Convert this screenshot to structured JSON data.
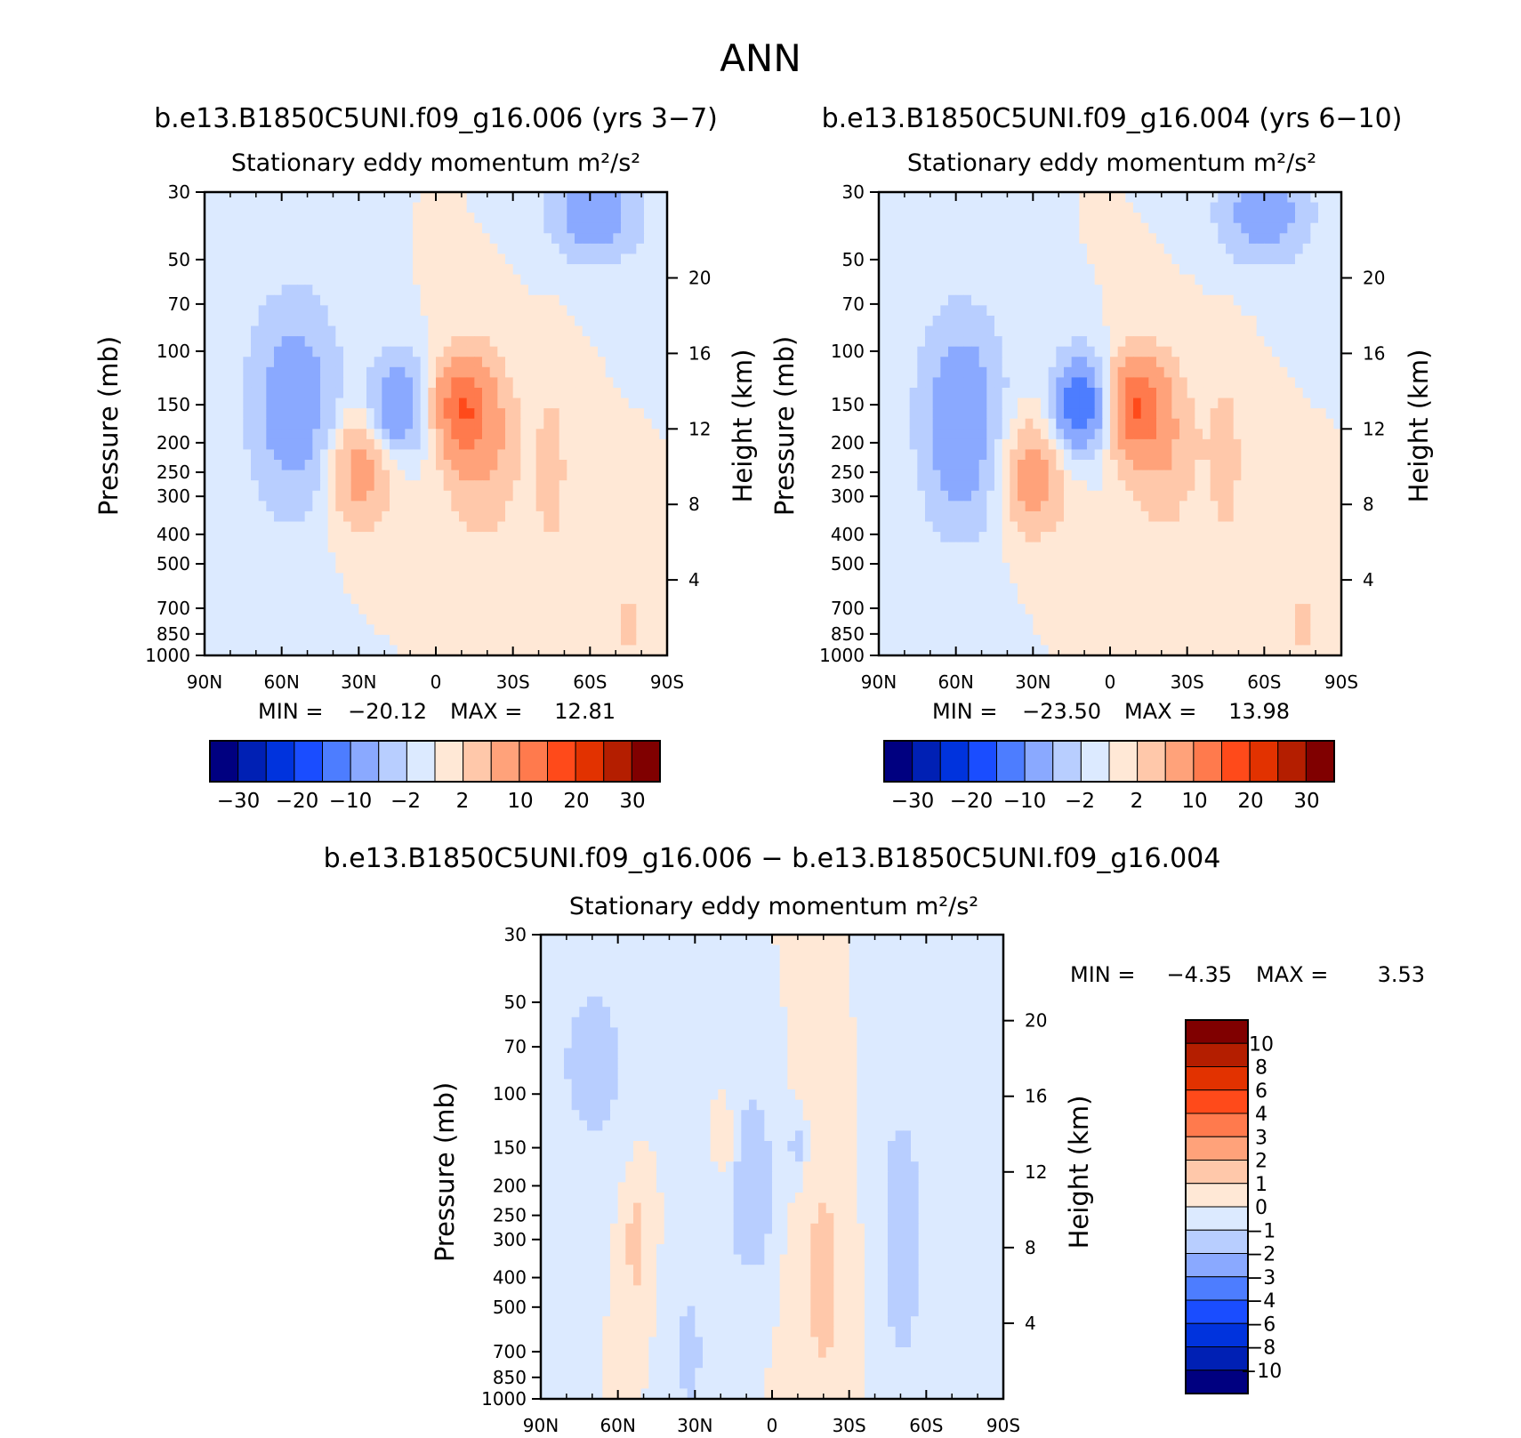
{
  "figure_title": "ANN",
  "colors": {
    "ramp": [
      "#000080",
      "#0020B4",
      "#0033DD",
      "#1A4DFF",
      "#4D7DFF",
      "#8AA9FF",
      "#B8CEFF",
      "#DCEAFF",
      "#FFE8D6",
      "#FFC8AA",
      "#FFA27A",
      "#FF7A4D",
      "#FF4A1A",
      "#E23200",
      "#B41E00",
      "#800000"
    ]
  },
  "chart_data": [
    {
      "type": "heatmap",
      "title": "b.e13.B1850C5UNI.f09_g16.006 (yrs 3−7)",
      "subtitle": "Stationary eddy momentum m²/s²",
      "ylabel": "Pressure (mb)",
      "y2label": "Height (km)",
      "x_ticks": [
        "90N",
        "60N",
        "30N",
        "0",
        "30S",
        "60S",
        "90S"
      ],
      "y_ticks": [
        "30",
        "50",
        "70",
        "100",
        "150",
        "200",
        "250",
        "300",
        "400",
        "500",
        "700",
        "850",
        "1000"
      ],
      "y2_ticks": [
        "20",
        "16",
        "12",
        "8",
        "4"
      ],
      "ylim": [
        1000,
        30
      ],
      "log_y": true,
      "min": -20.12,
      "max": 12.81,
      "min_label": "MIN =",
      "min_value": "−20.12",
      "max_label": "MAX =",
      "max_value": "12.81",
      "colorbar": {
        "orientation": "horizontal",
        "labels": [
          "−30",
          "−20",
          "−10",
          "−2",
          "2",
          "10",
          "20",
          "30"
        ]
      },
      "features": [
        {
          "lat": 55,
          "p": 150,
          "value": -8,
          "lat_w": 12,
          "lp_w": 0.55
        },
        {
          "lat": -18,
          "p": 200,
          "value": 6,
          "lat_w": 10,
          "lp_w": 0.45
        },
        {
          "lat": -62,
          "p": 35,
          "value": -8,
          "lat_w": 12,
          "lp_w": 0.25
        },
        {
          "lat": 15,
          "p": 150,
          "value": -10,
          "lat_w": 7,
          "lp_w": 0.25
        },
        {
          "lat": -10,
          "p": 150,
          "value": 12,
          "lat_w": 7,
          "lp_w": 0.25
        },
        {
          "lat": 30,
          "p": 250,
          "value": 7,
          "lat_w": 9,
          "lp_w": 0.3
        },
        {
          "lat": -45,
          "p": 250,
          "value": 3,
          "lat_w": 5,
          "lp_w": 0.5
        },
        {
          "lat": -75,
          "p": 800,
          "value": 3,
          "lat_w": 3,
          "lp_w": 0.2
        }
      ]
    },
    {
      "type": "heatmap",
      "title": "b.e13.B1850C5UNI.f09_g16.004 (yrs 6−10)",
      "subtitle": "Stationary eddy momentum m²/s²",
      "ylabel": "Pressure (mb)",
      "y2label": "Height (km)",
      "x_ticks": [
        "90N",
        "60N",
        "30N",
        "0",
        "30S",
        "60S",
        "90S"
      ],
      "y_ticks": [
        "30",
        "50",
        "70",
        "100",
        "150",
        "200",
        "250",
        "300",
        "400",
        "500",
        "700",
        "850",
        "1000"
      ],
      "y2_ticks": [
        "20",
        "16",
        "12",
        "8",
        "4"
      ],
      "ylim": [
        1000,
        30
      ],
      "log_y": true,
      "min": -23.5,
      "max": 13.98,
      "min_label": "MIN =",
      "min_value": "−23.50",
      "max_label": "MAX =",
      "max_value": "13.98",
      "colorbar": {
        "orientation": "horizontal",
        "labels": [
          "−30",
          "−20",
          "−10",
          "−2",
          "2",
          "10",
          "20",
          "30"
        ]
      },
      "features": [
        {
          "lat": 58,
          "p": 170,
          "value": -9,
          "lat_w": 11,
          "lp_w": 0.55
        },
        {
          "lat": -20,
          "p": 200,
          "value": 5,
          "lat_w": 10,
          "lp_w": 0.45
        },
        {
          "lat": -60,
          "p": 35,
          "value": -8,
          "lat_w": 12,
          "lp_w": 0.25
        },
        {
          "lat": 12,
          "p": 150,
          "value": -14,
          "lat_w": 7,
          "lp_w": 0.25
        },
        {
          "lat": -10,
          "p": 150,
          "value": 13,
          "lat_w": 7,
          "lp_w": 0.25
        },
        {
          "lat": 30,
          "p": 260,
          "value": 7,
          "lat_w": 9,
          "lp_w": 0.3
        },
        {
          "lat": -45,
          "p": 230,
          "value": 3,
          "lat_w": 5,
          "lp_w": 0.5
        },
        {
          "lat": -75,
          "p": 800,
          "value": 3,
          "lat_w": 3,
          "lp_w": 0.2
        }
      ]
    },
    {
      "type": "heatmap",
      "title": "b.e13.B1850C5UNI.f09_g16.006 − b.e13.B1850C5UNI.f09_g16.004",
      "subtitle": "Stationary eddy momentum m²/s²",
      "ylabel": "Pressure (mb)",
      "y2label": "Height (km)",
      "x_ticks": [
        "90N",
        "60N",
        "30N",
        "0",
        "30S",
        "60S",
        "90S"
      ],
      "y_ticks": [
        "30",
        "50",
        "70",
        "100",
        "150",
        "200",
        "250",
        "300",
        "400",
        "500",
        "700",
        "850",
        "1000"
      ],
      "y2_ticks": [
        "20",
        "16",
        "12",
        "8",
        "4"
      ],
      "ylim": [
        1000,
        30
      ],
      "log_y": true,
      "min": -4.35,
      "max": 3.53,
      "min_label": "MIN =",
      "min_value": "−4.35",
      "max_label": "MAX =",
      "max_value": "3.53",
      "colorbar": {
        "orientation": "vertical",
        "labels": [
          "10",
          "8",
          "6",
          "4",
          "3",
          "2",
          "1",
          "0",
          "−1",
          "−2",
          "−3",
          "−4",
          "−6",
          "−8",
          "−10"
        ]
      },
      "features": [
        {
          "lat": 70,
          "p": 80,
          "value": -1.4,
          "lat_w": 12,
          "lp_w": 0.6
        },
        {
          "lat": 53,
          "p": 300,
          "value": 1.4,
          "lat_w": 4,
          "lp_w": 0.4
        },
        {
          "lat": 8,
          "p": 200,
          "value": -1.8,
          "lat_w": 8,
          "lp_w": 0.6
        },
        {
          "lat": -50,
          "p": 300,
          "value": -1.3,
          "lat_w": 10,
          "lp_w": 1.2
        },
        {
          "lat": -20,
          "p": 400,
          "value": 1.2,
          "lat_w": 10,
          "lp_w": 1.0
        },
        {
          "lat": -10,
          "p": 150,
          "value": -1.6,
          "lat_w": 3,
          "lp_w": 0.2
        },
        {
          "lat": 18,
          "p": 140,
          "value": 1.5,
          "lat_w": 3,
          "lp_w": 0.2
        },
        {
          "lat": 32,
          "p": 700,
          "value": -1.2,
          "lat_w": 6,
          "lp_w": 0.6
        }
      ]
    }
  ]
}
